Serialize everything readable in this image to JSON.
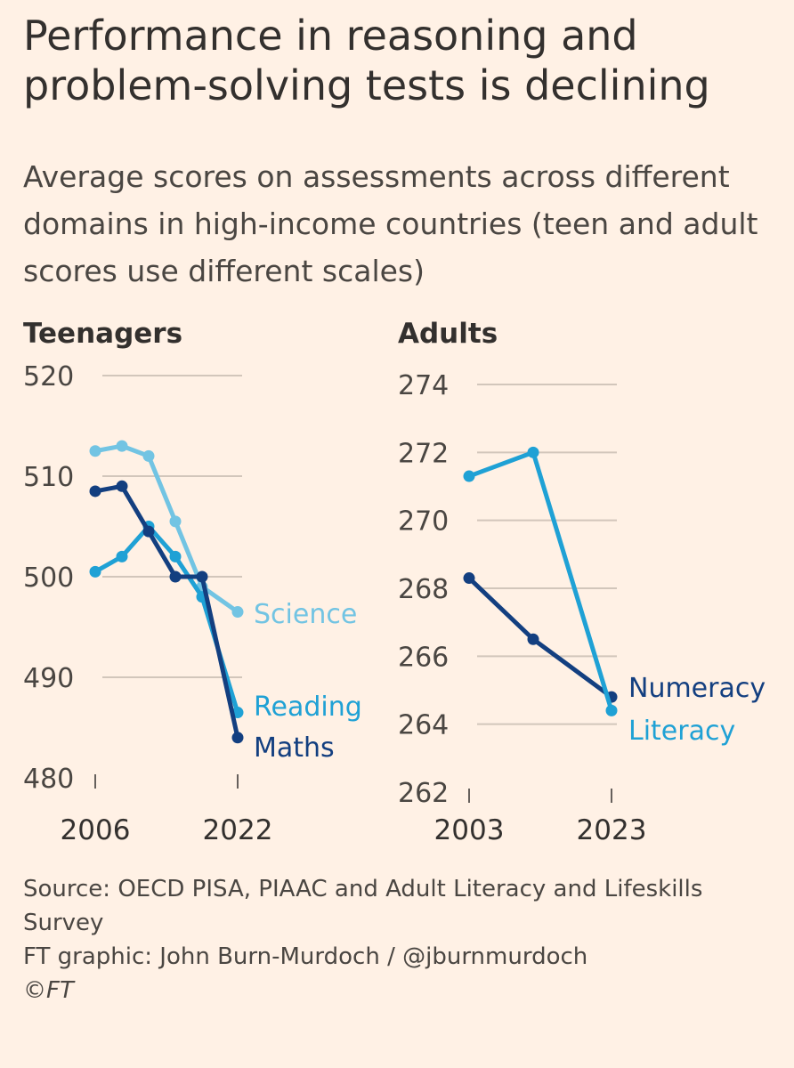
{
  "title": "Performance in reasoning and problem-solving tests is declining",
  "subtitle": "Average scores on assessments across different domains in high-income countries (teen and adult scores use different scales)",
  "chart_data": [
    {
      "type": "line",
      "panel_title": "Teenagers",
      "x": [
        2006,
        2009,
        2012,
        2015,
        2018,
        2022
      ],
      "x_tick_labels": [
        "2006",
        "2022"
      ],
      "ylim": [
        480,
        520
      ],
      "y_ticks": [
        480,
        490,
        500,
        510,
        520
      ],
      "grid": true,
      "series": [
        {
          "name": "Science",
          "color": "#72c4e3",
          "values": [
            512.5,
            513,
            512,
            505.5,
            499,
            496.5
          ]
        },
        {
          "name": "Reading",
          "color": "#1fa1d5",
          "values": [
            500.5,
            502,
            505,
            502,
            498,
            486.5
          ]
        },
        {
          "name": "Maths",
          "color": "#133f80",
          "values": [
            508.5,
            509,
            504.5,
            500,
            500,
            484
          ]
        }
      ]
    },
    {
      "type": "line",
      "panel_title": "Adults",
      "x": [
        2003,
        2012,
        2023
      ],
      "x_tick_labels": [
        "2003",
        "2023"
      ],
      "ylim": [
        262,
        274
      ],
      "y_ticks": [
        262,
        264,
        266,
        268,
        270,
        272,
        274
      ],
      "grid": true,
      "series": [
        {
          "name": "Numeracy",
          "color": "#133f80",
          "x": [
            2003,
            2012,
            2023
          ],
          "values": [
            268.3,
            266.5,
            264.8
          ]
        },
        {
          "name": "Literacy",
          "color": "#1fa1d5",
          "x": [
            2003,
            2012,
            2023
          ],
          "values": [
            271.3,
            272,
            264.4
          ]
        }
      ]
    }
  ],
  "footer": {
    "source": "Source: OECD PISA, PIAAC and Adult Literacy and Lifeskills Survey",
    "credit": "FT graphic: John Burn-Murdoch / @jburnmurdoch",
    "copyright": "©FT"
  }
}
